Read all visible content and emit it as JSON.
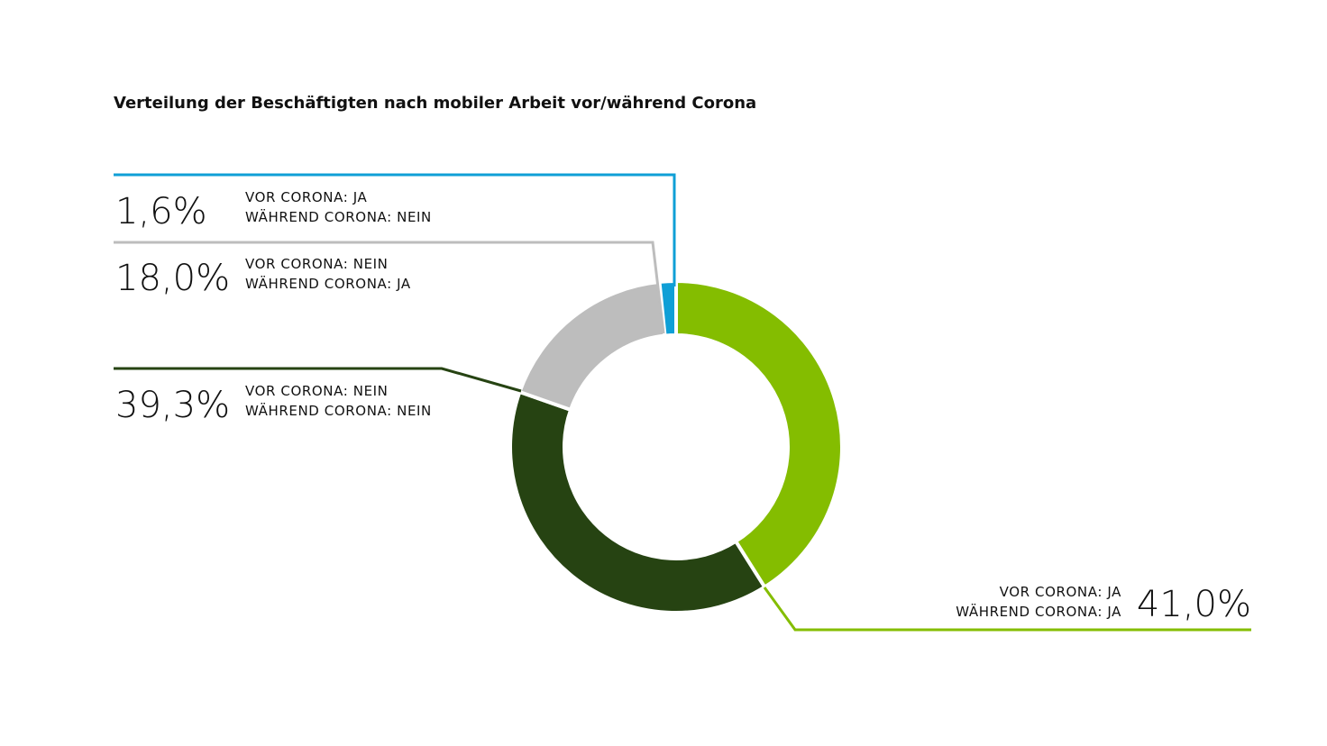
{
  "chart_data": {
    "type": "pie",
    "title": "Verteilung der Beschäftigten nach mobiler Arbeit vor/während Corona",
    "slices": [
      {
        "id": "ja-ja",
        "value": 41.0,
        "label": "41,0%",
        "line1": "VOR CORONA: JA",
        "line2": "WÄHREND CORONA: JA",
        "color": "#84bd00"
      },
      {
        "id": "nein-nein",
        "value": 39.3,
        "label": "39,3%",
        "line1": "VOR CORONA: NEIN",
        "line2": "WÄHREND CORONA: NEIN",
        "color": "#264312"
      },
      {
        "id": "nein-ja",
        "value": 18.0,
        "label": "18,0%",
        "line1": "VOR CORONA: NEIN",
        "line2": "WÄHREND CORONA: JA",
        "color": "#bdbdbd"
      },
      {
        "id": "ja-nein",
        "value": 1.6,
        "label": "1,6%",
        "line1": "VOR CORONA: JA",
        "line2": "WÄHREND CORONA: NEIN",
        "color": "#0f9fd6"
      }
    ]
  }
}
